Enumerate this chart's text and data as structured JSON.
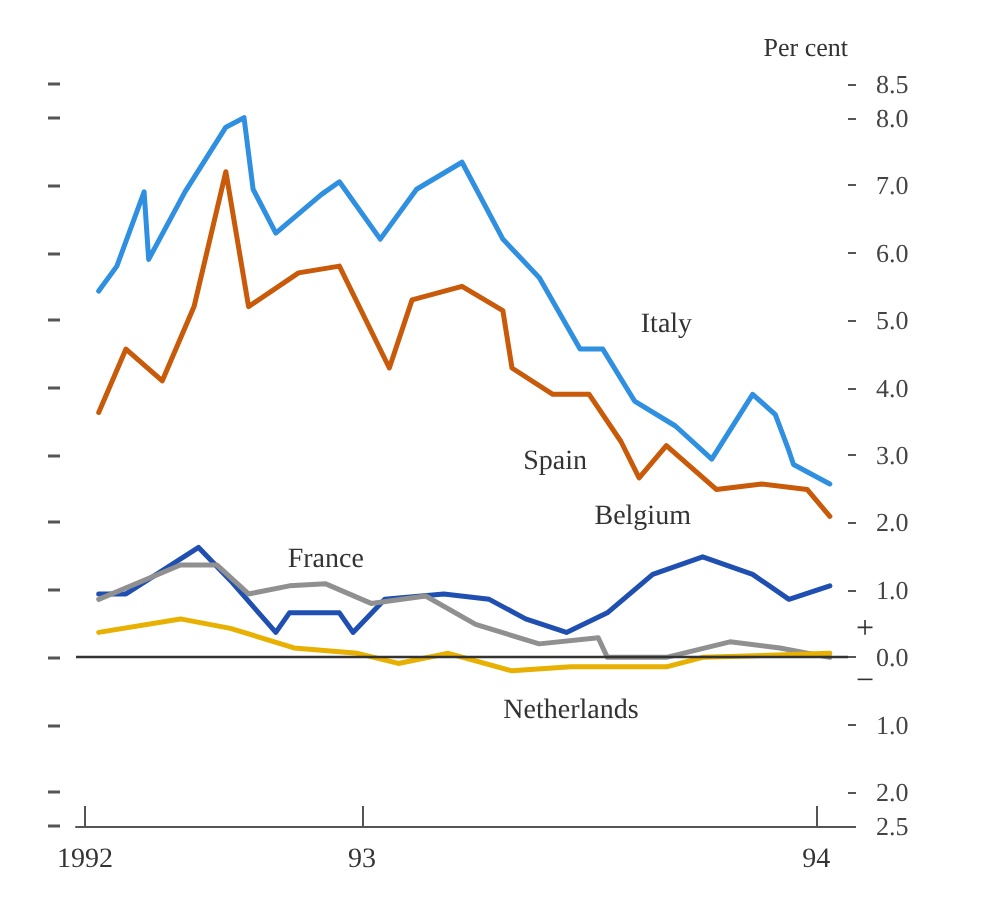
{
  "chart_data": {
    "type": "line",
    "ylabel": "Per cent",
    "xlim": [
      1992.37,
      1994.07
    ],
    "xticks": [
      {
        "value": 1992.39,
        "label": "1992"
      },
      {
        "value": 1993,
        "label": "93"
      },
      {
        "value": 1994,
        "label": "94"
      }
    ],
    "ylim": [
      -2.5,
      8.5
    ],
    "yticks": [
      {
        "value": -2.5,
        "label": "2.5"
      },
      {
        "value": -2,
        "label": "2.0"
      },
      {
        "value": -1,
        "label": "1.0"
      },
      {
        "value": 0,
        "label": "0.0"
      },
      {
        "value": 1,
        "label": "1.0"
      },
      {
        "value": 2,
        "label": "2.0"
      },
      {
        "value": 3,
        "label": "3.0"
      },
      {
        "value": 4,
        "label": "4.0"
      },
      {
        "value": 5,
        "label": "5.0"
      },
      {
        "value": 6,
        "label": "6.0"
      },
      {
        "value": 7,
        "label": "7.0"
      },
      {
        "value": 8,
        "label": "8.0"
      },
      {
        "value": 8.5,
        "label": "8.5"
      }
    ],
    "grid": false,
    "marker": "none",
    "line_style": "solid",
    "ref_lines": [
      {
        "axis": "y",
        "value": 0,
        "color": "#333333"
      }
    ],
    "annotations": [
      "+",
      "−"
    ],
    "series": [
      {
        "name": "Italy",
        "color": "#2f8fe0",
        "x": [
          1992.42,
          1992.46,
          1992.52,
          1992.53,
          1992.61,
          1992.7,
          1992.74,
          1992.76,
          1992.81,
          1992.91,
          1992.95,
          1993.04,
          1993.12,
          1993.22,
          1993.31,
          1993.39,
          1993.48,
          1993.53,
          1993.6,
          1993.69,
          1993.77,
          1993.86,
          1993.91,
          1993.94,
          1993.95,
          1994.03
        ],
        "values": [
          5.43,
          5.8,
          6.9,
          5.9,
          6.9,
          7.86,
          8.0,
          6.94,
          6.29,
          6.86,
          7.05,
          6.2,
          6.94,
          7.34,
          6.2,
          5.63,
          4.57,
          4.57,
          3.8,
          3.43,
          2.94,
          3.9,
          3.6,
          3.06,
          2.86,
          2.57
        ]
      },
      {
        "name": "Spain",
        "color": "#c85a0a",
        "x": [
          1992.42,
          1992.48,
          1992.56,
          1992.63,
          1992.7,
          1992.75,
          1992.86,
          1992.95,
          1993.06,
          1993.11,
          1993.22,
          1993.31,
          1993.33,
          1993.42,
          1993.5,
          1993.57,
          1993.61,
          1993.67,
          1993.78,
          1993.88,
          1993.98,
          1994.03
        ],
        "values": [
          3.63,
          4.57,
          4.1,
          5.2,
          7.2,
          5.2,
          5.7,
          5.8,
          4.29,
          5.3,
          5.5,
          5.14,
          4.29,
          3.9,
          3.9,
          3.2,
          2.66,
          3.14,
          2.49,
          2.57,
          2.49,
          2.09
        ]
      },
      {
        "name": "Belgium",
        "color": "#1f4fb0",
        "x": [
          1992.42,
          1992.48,
          1992.64,
          1992.71,
          1992.81,
          1992.84,
          1992.95,
          1992.98,
          1993.05,
          1993.18,
          1993.28,
          1993.36,
          1993.45,
          1993.54,
          1993.64,
          1993.75,
          1993.86,
          1993.94,
          1994.03
        ],
        "values": [
          0.94,
          0.94,
          1.63,
          1.14,
          0.37,
          0.66,
          0.66,
          0.37,
          0.86,
          0.94,
          0.86,
          0.57,
          0.37,
          0.66,
          1.23,
          1.49,
          1.23,
          0.86,
          1.06
        ]
      },
      {
        "name": "France",
        "color": "#909090",
        "x": [
          1992.42,
          1992.6,
          1992.68,
          1992.75,
          1992.84,
          1992.92,
          1993.02,
          1993.14,
          1993.25,
          1993.39,
          1993.52,
          1993.54,
          1993.67,
          1993.81,
          1993.92,
          1994.03
        ],
        "values": [
          0.86,
          1.37,
          1.37,
          0.94,
          1.06,
          1.09,
          0.8,
          0.91,
          0.49,
          0.2,
          0.29,
          0.0,
          0.0,
          0.23,
          0.14,
          0.0
        ]
      },
      {
        "name": "Netherlands",
        "color": "#e8b000",
        "x": [
          1992.42,
          1992.6,
          1992.71,
          1992.85,
          1992.99,
          1993.08,
          1993.19,
          1993.33,
          1993.46,
          1993.67,
          1993.75,
          1994.03
        ],
        "values": [
          0.37,
          0.57,
          0.43,
          0.14,
          0.06,
          -0.09,
          0.06,
          -0.2,
          -0.14,
          -0.14,
          0.0,
          0.06
        ]
      }
    ]
  }
}
